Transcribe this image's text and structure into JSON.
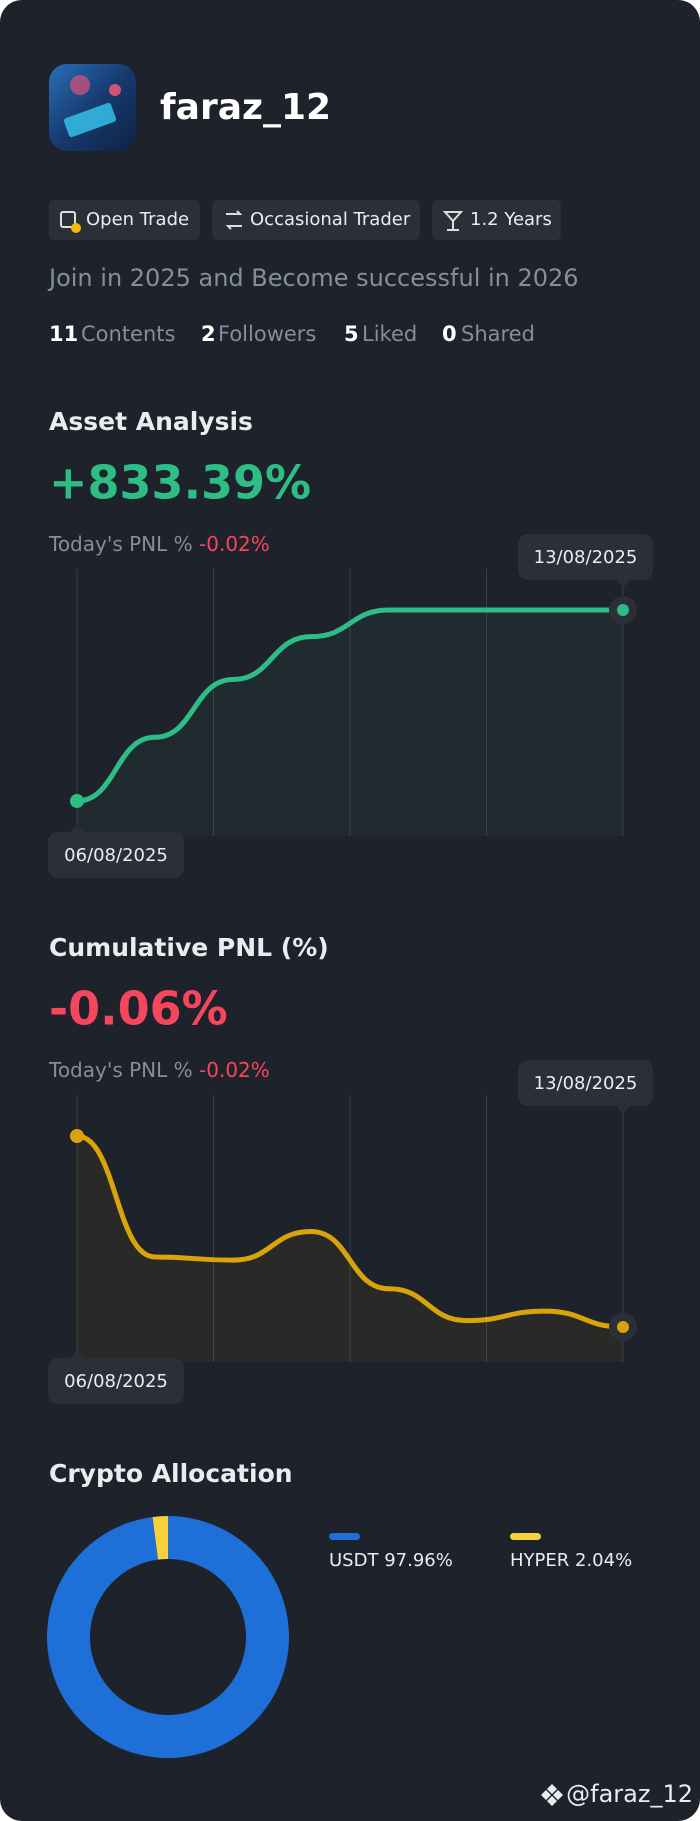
{
  "profile": {
    "name": "faraz_12",
    "tags": [
      "Open Trade",
      "Occasional Trader",
      "1.2 Years"
    ],
    "bio": "Join in 2025 and Become successful in 2026",
    "stats": [
      {
        "value": "11",
        "label": "Contents"
      },
      {
        "value": "2",
        "label": "Followers"
      },
      {
        "value": "5",
        "label": "Liked"
      },
      {
        "value": "0",
        "label": "Shared"
      }
    ]
  },
  "chart_data": [
    {
      "type": "line",
      "title": "Asset Analysis",
      "headline": "+833.39%",
      "subtitle": "Today's PNL %",
      "subtitle_value": "-0.02%",
      "start_label": "06/08/2025",
      "end_label": "13/08/2025",
      "series": [
        {
          "color": "#2ebd85",
          "values": [
            0,
            278,
            530,
            717,
            833.39,
            833.39,
            833.39,
            833.39
          ]
        }
      ]
    },
    {
      "type": "line",
      "title": "Cumulative PNL (%)",
      "headline": "-0.06%",
      "subtitle": "Today's PNL %",
      "subtitle_value": "-0.02%",
      "start_label": "06/08/2025",
      "end_label": "13/08/2025",
      "series": [
        {
          "color": "#d9a30a",
          "values": [
            0,
            -0.038,
            -0.039,
            -0.03,
            -0.048,
            -0.058,
            -0.055,
            -0.06
          ]
        }
      ]
    },
    {
      "type": "pie",
      "title": "Crypto Allocation",
      "categories": [
        "USDT",
        "HYPER"
      ],
      "values": [
        97.96,
        2.04
      ],
      "value_labels": [
        "97.96%",
        "2.04%"
      ],
      "colors": [
        "#1f6fd8",
        "#f7d13a"
      ]
    }
  ],
  "footer": {
    "handle": "@faraz_12"
  }
}
